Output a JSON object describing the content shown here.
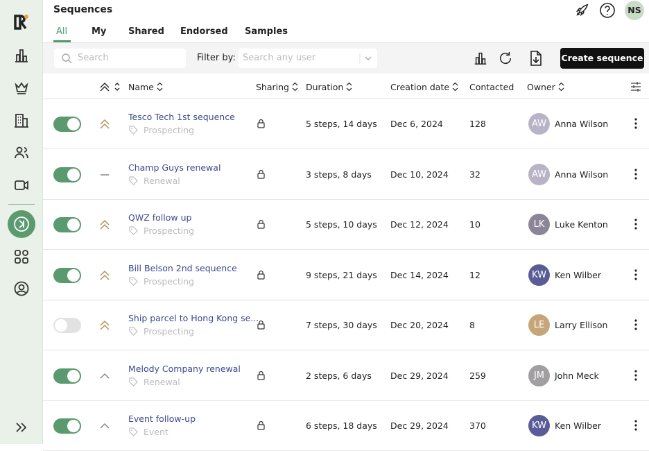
{
  "header": {
    "title": "Sequences",
    "tabs": [
      "All",
      "My",
      "Shared",
      "Endorsed",
      "Samples"
    ],
    "active_tab": 0
  },
  "toolbar": {
    "search_placeholder": "Search",
    "filter_label": "Filter by:",
    "user_placeholder": "Search any user",
    "create_button": "Create sequence"
  },
  "table": {
    "columns": [
      "Name",
      "Sharing",
      "Duration",
      "Creation date",
      "Contacted",
      "Owner"
    ],
    "rows": [
      {
        "active": true,
        "priority": "high",
        "name": "Tesco Tech 1st sequence",
        "tag": "Prospecting",
        "duration": "5 steps, 14 days",
        "created": "Dec 6, 2024",
        "contacted": "128",
        "initials": "AW",
        "owner": "Anna Wilson",
        "avatar_color": "#b8b3c6"
      },
      {
        "active": true,
        "priority": "none",
        "name": "Champ Guys renewal",
        "tag": "Renewal",
        "duration": "3 steps, 8 days",
        "created": "Dec 10, 2024",
        "contacted": "32",
        "initials": "AW",
        "owner": "Anna Wilson",
        "avatar_color": "#b8b3c6"
      },
      {
        "active": true,
        "priority": "high",
        "name": "QWZ follow up",
        "tag": "Prospecting",
        "duration": "5 steps, 10 days",
        "created": "Dec 12, 2024",
        "contacted": "10",
        "initials": "LK",
        "owner": "Luke Kenton",
        "avatar_color": "#8c8597"
      },
      {
        "active": true,
        "priority": "high",
        "name": "Bill Belson 2nd sequence",
        "tag": "Prospecting",
        "duration": "9 steps, 21 days",
        "created": "Dec 14, 2024",
        "contacted": "12",
        "initials": "KW",
        "owner": "Ken Wilber",
        "avatar_color": "#595c97"
      },
      {
        "active": false,
        "priority": "high",
        "name": "Ship parcel to Hong Kong se...",
        "tag": "Prospecting",
        "duration": "7 steps, 30 days",
        "created": "Dec 20, 2024",
        "contacted": "8",
        "initials": "LE",
        "owner": "Larry Ellison",
        "avatar_color": "#c6a679"
      },
      {
        "active": true,
        "priority": "medium",
        "name": "Melody Company renewal",
        "tag": "Renewal",
        "duration": "2 steps, 6 days",
        "created": "Dec 29, 2024",
        "contacted": "259",
        "initials": "JM",
        "owner": "John Meck",
        "avatar_color": "#a19fa4"
      },
      {
        "active": true,
        "priority": "medium",
        "name": "Event follow-up",
        "tag": "Event",
        "duration": "6 steps, 18 days",
        "created": "Dec 29, 2024",
        "contacted": "370",
        "initials": "KW",
        "owner": "Ken Wilber",
        "avatar_color": "#595c97"
      }
    ]
  },
  "user": {
    "initials": "NS"
  }
}
